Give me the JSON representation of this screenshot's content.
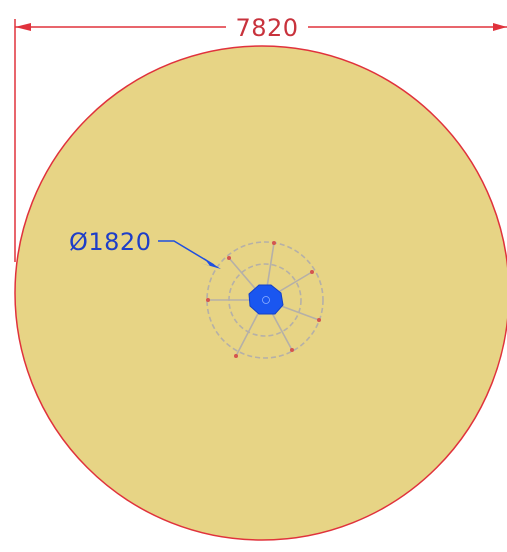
{
  "dimensions": {
    "overall_width_label": "7820",
    "hub_diameter_label": "Ø1820"
  },
  "colors": {
    "disc_fill": "#e7d485",
    "disc_outline": "#e0323c",
    "dimension_red": "#e0323c",
    "dimension_blue": "#1f4fe0",
    "hub_lines": "#b5b0a8",
    "center_blue": "#1a56f0"
  },
  "icons": {
    "arrowheads": "arrow-icon",
    "diameter_symbol": "diameter-icon"
  }
}
